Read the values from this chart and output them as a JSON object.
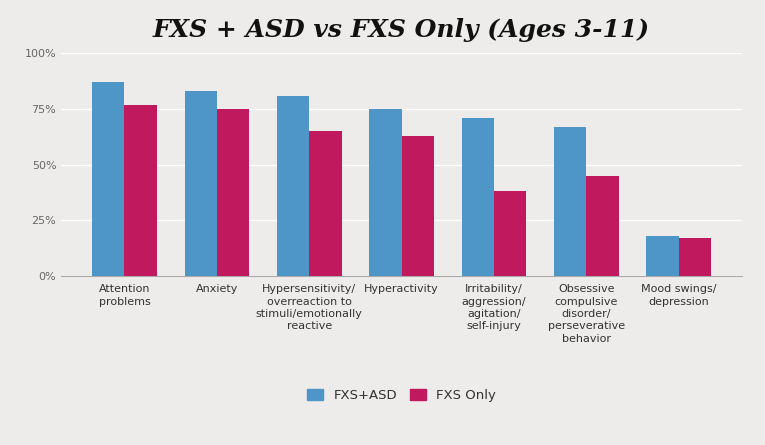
{
  "title": "FXS + ASD vs FXS Only (Ages 3-11)",
  "categories": [
    "Attention\nproblems",
    "Anxiety",
    "Hypersensitivity/\noverreaction to\nstimuli/emotionally\nreactive",
    "Hyperactivity",
    "Irritability/\naggression/\nagitation/\nself-injury",
    "Obsessive\ncompulsive\ndisorder/\nperseverative\nbehavior",
    "Mood swings/\ndepression"
  ],
  "fxs_asd": [
    87,
    83,
    81,
    75,
    71,
    67,
    18
  ],
  "fxs_only": [
    77,
    75,
    65,
    63,
    38,
    45,
    17
  ],
  "color_asd": "#4e95c8",
  "color_only": "#c0195e",
  "background": "#eeeceb",
  "ylim": [
    0,
    100
  ],
  "yticks": [
    0,
    25,
    50,
    75,
    100
  ],
  "ytick_labels": [
    "0%",
    "25%",
    "50%",
    "75%",
    "100%"
  ],
  "legend_labels": [
    "FXS+ASD",
    "FXS Only"
  ],
  "bar_width": 0.35,
  "title_fontsize": 18,
  "tick_fontsize": 8,
  "legend_fontsize": 9.5
}
